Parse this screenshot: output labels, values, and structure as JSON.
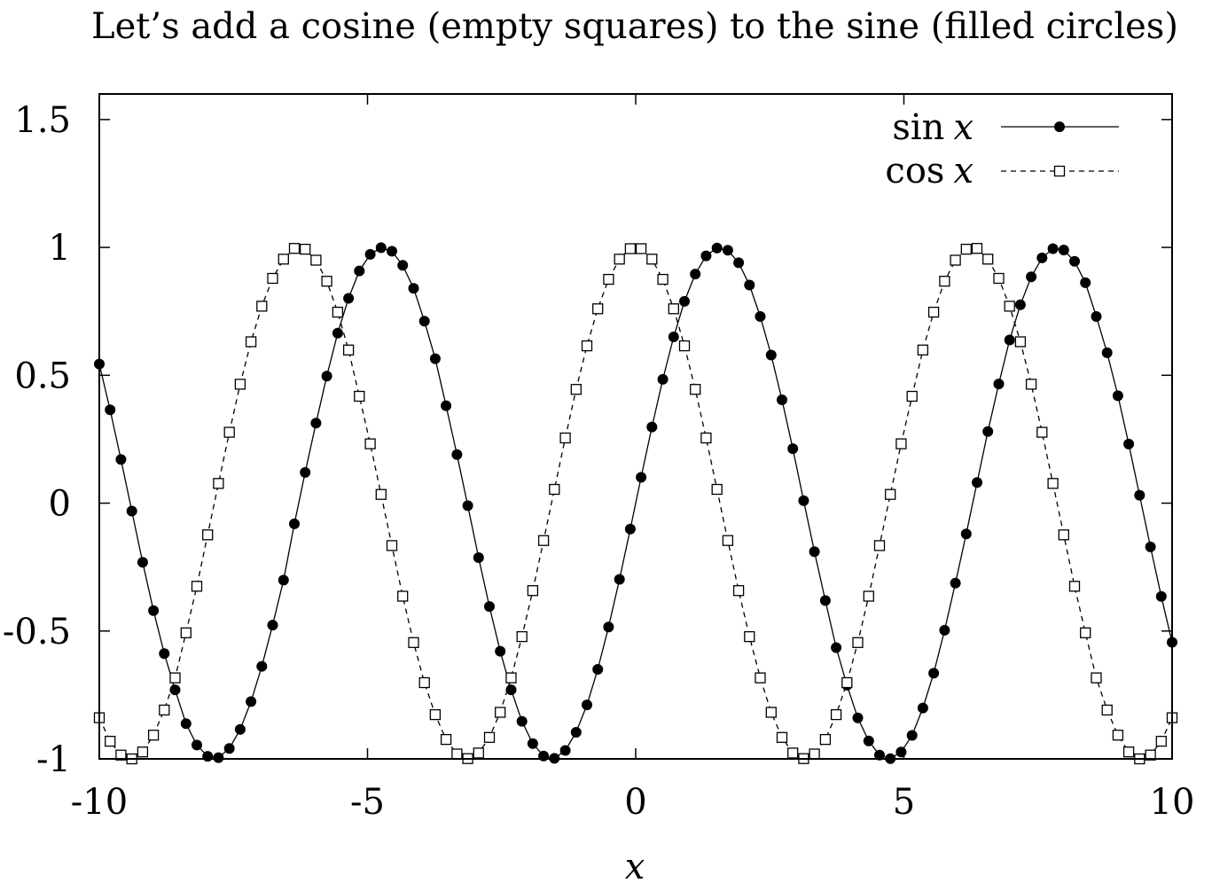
{
  "chart_data": {
    "type": "line",
    "title": "Let’s add a cosine (empty squares) to the sine (filled circles)",
    "xlabel": "x",
    "ylabel": "",
    "xlim": [
      -10,
      10
    ],
    "ylim": [
      -1,
      1.6
    ],
    "x_ticks": [
      {
        "value": -10,
        "label": "-10"
      },
      {
        "value": -5,
        "label": "-5"
      },
      {
        "value": 0,
        "label": "0"
      },
      {
        "value": 5,
        "label": "5"
      },
      {
        "value": 10,
        "label": "10"
      }
    ],
    "y_ticks": [
      {
        "value": -1,
        "label": "-1"
      },
      {
        "value": -0.5,
        "label": "-0.5"
      },
      {
        "value": 0,
        "label": "0"
      },
      {
        "value": 0.5,
        "label": "0.5"
      },
      {
        "value": 1,
        "label": "1"
      },
      {
        "value": 1.5,
        "label": "1.5"
      }
    ],
    "grid": false,
    "legend_position": "top-right",
    "x": [
      -10.0,
      -9.798,
      -9.596,
      -9.394,
      -9.192,
      -8.99,
      -8.788,
      -8.586,
      -8.384,
      -8.182,
      -7.98,
      -7.778,
      -7.576,
      -7.374,
      -7.172,
      -6.97,
      -6.768,
      -6.566,
      -6.364,
      -6.162,
      -5.96,
      -5.758,
      -5.556,
      -5.354,
      -5.152,
      -4.949,
      -4.747,
      -4.545,
      -4.343,
      -4.141,
      -3.939,
      -3.737,
      -3.535,
      -3.333,
      -3.131,
      -2.929,
      -2.727,
      -2.525,
      -2.323,
      -2.121,
      -1.919,
      -1.717,
      -1.515,
      -1.313,
      -1.111,
      -0.909,
      -0.707,
      -0.505,
      -0.303,
      -0.101,
      0.101,
      0.303,
      0.505,
      0.707,
      0.909,
      1.111,
      1.313,
      1.515,
      1.717,
      1.919,
      2.121,
      2.323,
      2.525,
      2.727,
      2.929,
      3.131,
      3.333,
      3.535,
      3.737,
      3.939,
      4.141,
      4.343,
      4.545,
      4.747,
      4.949,
      5.152,
      5.354,
      5.556,
      5.758,
      5.96,
      6.162,
      6.364,
      6.566,
      6.768,
      6.97,
      7.172,
      7.374,
      7.576,
      7.778,
      7.98,
      8.182,
      8.384,
      8.586,
      8.788,
      8.99,
      9.192,
      9.394,
      9.596,
      9.798,
      10.0
    ],
    "series": [
      {
        "name": "sin x",
        "style": "solid line, filled circles",
        "color": "#000000",
        "values": [
          0.544,
          0.365,
          0.171,
          -0.031,
          -0.231,
          -0.42,
          -0.588,
          -0.73,
          -0.862,
          -0.946,
          -0.99,
          -0.995,
          -0.959,
          -0.885,
          -0.776,
          -0.638,
          -0.477,
          -0.301,
          -0.081,
          0.12,
          0.313,
          0.497,
          0.665,
          0.801,
          0.908,
          0.973,
          0.999,
          0.985,
          0.93,
          0.84,
          0.712,
          0.565,
          0.381,
          0.19,
          -0.01,
          -0.213,
          -0.404,
          -0.579,
          -0.73,
          -0.853,
          -0.94,
          -0.989,
          -0.998,
          -0.967,
          -0.896,
          -0.789,
          -0.65,
          -0.484,
          -0.298,
          -0.101,
          0.101,
          0.298,
          0.484,
          0.65,
          0.789,
          0.896,
          0.967,
          0.998,
          0.989,
          0.94,
          0.853,
          0.73,
          0.579,
          0.404,
          0.213,
          0.01,
          -0.19,
          -0.381,
          -0.565,
          -0.712,
          -0.84,
          -0.93,
          -0.985,
          -0.999,
          -0.973,
          -0.908,
          -0.801,
          -0.665,
          -0.497,
          -0.313,
          -0.12,
          0.081,
          0.28,
          0.466,
          0.638,
          0.776,
          0.885,
          0.959,
          0.995,
          0.99,
          0.946,
          0.862,
          0.73,
          0.588,
          0.42,
          0.231,
          0.031,
          -0.171,
          -0.365,
          -0.544
        ]
      },
      {
        "name": "cos x",
        "style": "dashed line, empty squares",
        "color": "#000000",
        "values": [
          -0.839,
          -0.931,
          -0.985,
          -1.0,
          -0.973,
          -0.907,
          -0.809,
          -0.683,
          -0.507,
          -0.325,
          -0.124,
          0.077,
          0.277,
          0.465,
          0.631,
          0.77,
          0.879,
          0.954,
          0.996,
          0.993,
          0.95,
          0.868,
          0.747,
          0.599,
          0.418,
          0.232,
          0.034,
          -0.166,
          -0.364,
          -0.545,
          -0.702,
          -0.827,
          -0.924,
          -0.981,
          -0.999,
          -0.977,
          -0.916,
          -0.818,
          -0.683,
          -0.522,
          -0.342,
          -0.146,
          0.054,
          0.255,
          0.445,
          0.615,
          0.76,
          0.875,
          0.954,
          0.995,
          0.995,
          0.954,
          0.875,
          0.76,
          0.615,
          0.445,
          0.255,
          0.054,
          -0.146,
          -0.342,
          -0.522,
          -0.683,
          -0.818,
          -0.916,
          -0.977,
          -0.999,
          -0.981,
          -0.924,
          -0.827,
          -0.702,
          -0.545,
          -0.364,
          -0.166,
          0.034,
          0.232,
          0.418,
          0.599,
          0.747,
          0.868,
          0.95,
          0.993,
          0.996,
          0.954,
          0.879,
          0.77,
          0.631,
          0.465,
          0.277,
          0.077,
          -0.124,
          -0.325,
          -0.507,
          -0.683,
          -0.809,
          -0.907,
          -0.973,
          -1.0,
          -0.985,
          -0.931,
          -0.839
        ]
      }
    ],
    "legend": [
      {
        "func": "sin",
        "var": "x"
      },
      {
        "func": "cos",
        "var": "x"
      }
    ]
  }
}
